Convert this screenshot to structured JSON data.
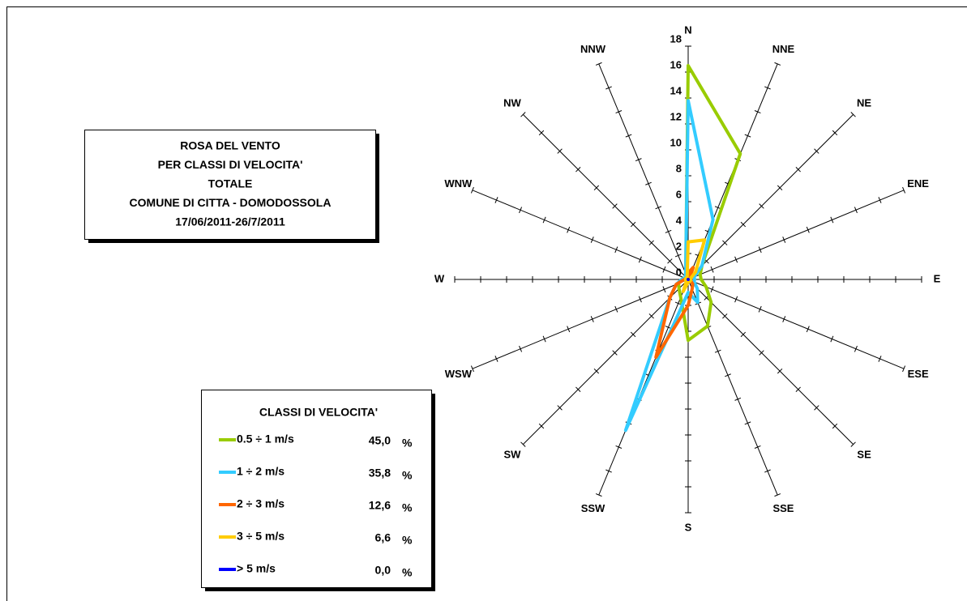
{
  "chart_data": {
    "type": "radar",
    "title_lines": [
      "ROSA DEL VENTO",
      "PER CLASSI DI VELOCITA'",
      "TOTALE",
      "COMUNE DI CITTA - DOMODOSSOLA",
      "17/06/2011-26/7/2011"
    ],
    "categories": [
      "N",
      "NNE",
      "NE",
      "ENE",
      "E",
      "ESE",
      "SE",
      "SSE",
      "S",
      "SSW",
      "SW",
      "WSW",
      "W",
      "WNW",
      "NW",
      "NNW"
    ],
    "rlim": [
      0,
      18
    ],
    "rticks": [
      0,
      2,
      4,
      6,
      8,
      10,
      12,
      14,
      16,
      18
    ],
    "legend_title": "CLASSI DI VELOCITA'",
    "share_unit": "%",
    "series": [
      {
        "name": "0.5 ÷ 1 m/s",
        "color": "#99cc00",
        "share": 45.0,
        "share_label": "45,0",
        "values": [
          16.5,
          10.5,
          1.5,
          1,
          1,
          1.5,
          2.5,
          3.9,
          4.7,
          1.5,
          1,
          0.8,
          0.5,
          0.3,
          0.3,
          0.5
        ]
      },
      {
        "name": "1 ÷ 2 m/s",
        "color": "#33ccff",
        "share": 35.8,
        "share_label": "35,8",
        "values": [
          13.8,
          5,
          1.5,
          0.5,
          0.5,
          0.5,
          1,
          1.9,
          1,
          12.6,
          2,
          1,
          0.5,
          0.3,
          0.3,
          0.5
        ]
      },
      {
        "name": "2 ÷ 3 m/s",
        "color": "#ff6600",
        "share": 12.6,
        "share_label": "12,6",
        "values": [
          0.5,
          1,
          0.2,
          0.2,
          0.2,
          0.2,
          0.5,
          0.8,
          2,
          6.5,
          2,
          1,
          0.3,
          0.2,
          0.2,
          0.2
        ]
      },
      {
        "name": "3 ÷ 5 m/s",
        "color": "#ffcc00",
        "share": 6.6,
        "share_label": "6,6",
        "values": [
          2.9,
          3.3,
          0.8,
          0.2,
          0.2,
          0.2,
          0.2,
          0.2,
          0.2,
          1,
          0.2,
          0.2,
          0.2,
          0.2,
          0.2,
          0.2
        ]
      },
      {
        "name": "> 5 m/s",
        "color": "#0000ff",
        "share": 0.0,
        "share_label": "0,0",
        "values": [
          0,
          0,
          0,
          0,
          0,
          0,
          0,
          0,
          0,
          0,
          0,
          0,
          0,
          0,
          0,
          0
        ]
      }
    ]
  }
}
